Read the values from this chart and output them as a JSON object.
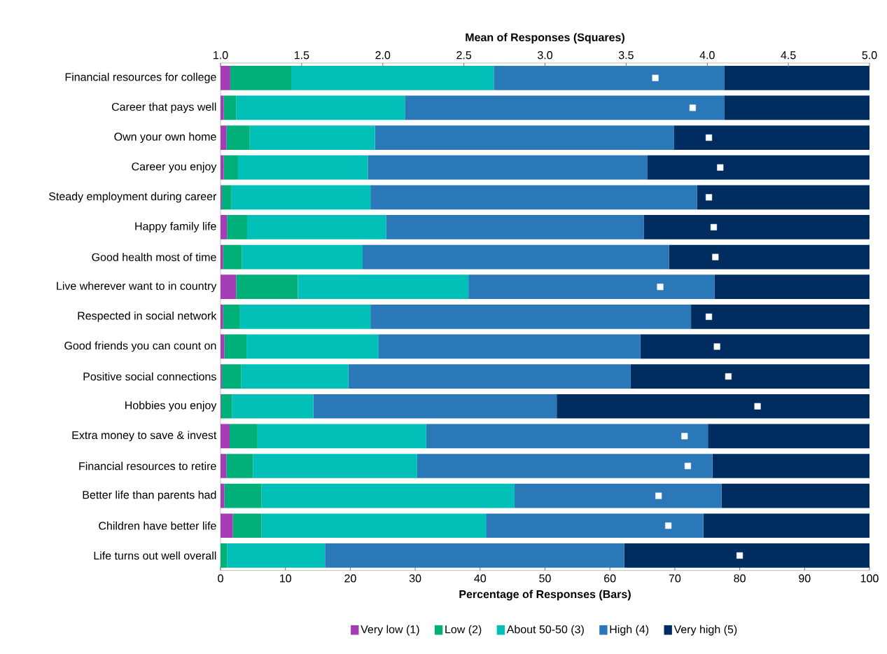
{
  "chart_data": {
    "type": "bar",
    "orientation": "horizontal",
    "stacked": true,
    "legend": "bottom",
    "grid": false,
    "xlabel": "Percentage of Responses (Bars)",
    "x2label": "Mean of Responses (Squares)",
    "xlim": [
      0,
      100
    ],
    "xticks": [
      0,
      10,
      20,
      30,
      40,
      50,
      60,
      70,
      80,
      90,
      100
    ],
    "x2lim": [
      1,
      5
    ],
    "x2ticks": [
      {
        "value": 1,
        "label": "1.0"
      },
      {
        "value": 1.5,
        "label": "1.5"
      },
      {
        "value": 2,
        "label": "2.0"
      },
      {
        "value": 2.5,
        "label": "2.5"
      },
      {
        "value": 3,
        "label": "3.0"
      },
      {
        "value": 3.5,
        "label": "3.5"
      },
      {
        "value": 4,
        "label": "4.0"
      },
      {
        "value": 4.5,
        "label": "4.5"
      },
      {
        "value": 5,
        "label": "5.0"
      }
    ],
    "categories": [
      "Financial resources for college",
      "Career that pays well",
      "Own your own home",
      "Career you enjoy",
      "Steady employment during career",
      "Happy family life",
      "Good health most of time",
      "Live wherever want to in country",
      "Respected in social network",
      "Good friends you can count on",
      "Positive social connections",
      "Hobbies you enjoy",
      "Extra money to save & invest",
      "Financial resources to retire",
      "Better life than parents had",
      "Children have better life",
      "Life turns out well overall"
    ],
    "series": [
      {
        "name": "Very low (1)",
        "color": "#a43cb4",
        "values": [
          1.5,
          0.5,
          0.9,
          0.5,
          0.2,
          1.0,
          0.4,
          2.4,
          0.4,
          0.6,
          0.2,
          0.1,
          1.4,
          0.9,
          0.6,
          1.9,
          0
        ]
      },
      {
        "name": "Low (2)",
        "color": "#00b078",
        "values": [
          9.4,
          1.9,
          3.6,
          2.2,
          1.5,
          3.1,
          2.9,
          9.5,
          2.6,
          3.4,
          3.0,
          1.7,
          4.3,
          4.1,
          5.7,
          4.4,
          1.0
        ]
      },
      {
        "name": "About 50-50 (3)",
        "color": "#00c0b8",
        "values": [
          31.2,
          26.0,
          19.3,
          20.0,
          21.4,
          21.4,
          18.6,
          26.3,
          20.1,
          20.3,
          16.5,
          12.5,
          26.0,
          25.3,
          39.0,
          34.6,
          15.1
        ]
      },
      {
        "name": "High (4)",
        "color": "#2a78b8",
        "values": [
          35.5,
          49.2,
          46.1,
          43.1,
          50.3,
          39.7,
          47.2,
          37.9,
          49.4,
          40.4,
          43.5,
          37.5,
          43.4,
          45.5,
          31.9,
          33.5,
          46.1
        ]
      },
      {
        "name": "Very high (5)",
        "color": "#002c60",
        "values": [
          22.4,
          22.4,
          30.1,
          34.2,
          26.6,
          34.8,
          30.9,
          23.9,
          27.5,
          35.3,
          36.8,
          48.2,
          24.9,
          24.2,
          22.8,
          25.6,
          37.8
        ]
      },
      {
        "type": "scatter",
        "axis": "x2",
        "marker": "square",
        "color": "#ffffff",
        "values": [
          3.68,
          3.91,
          4.01,
          4.08,
          4.01,
          4.04,
          4.05,
          3.71,
          4.01,
          4.06,
          4.13,
          4.31,
          3.86,
          3.88,
          3.7,
          3.76,
          4.2
        ]
      }
    ]
  }
}
